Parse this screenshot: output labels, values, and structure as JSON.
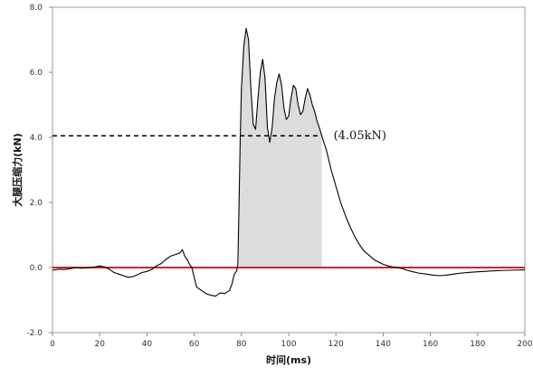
{
  "chart_data": {
    "type": "line",
    "title": "",
    "xlabel": "时间(ms)",
    "ylabel": "大腿压缩力(kN)",
    "xlim": [
      0,
      200
    ],
    "ylim": [
      -2.0,
      8.0
    ],
    "x_ticks": [
      0,
      20,
      40,
      60,
      80,
      100,
      120,
      140,
      160,
      180,
      200
    ],
    "y_ticks": [
      "-2.0",
      "0.0",
      "2.0",
      "4.0",
      "6.0",
      "8.0"
    ],
    "grid": false,
    "legend": "none",
    "series": [
      {
        "color": "#000000",
        "points": [
          [
            0,
            -0.08
          ],
          [
            3,
            -0.05
          ],
          [
            5,
            -0.06
          ],
          [
            8,
            -0.03
          ],
          [
            10,
            0.0
          ],
          [
            12,
            -0.02
          ],
          [
            15,
            -0.01
          ],
          [
            18,
            0.02
          ],
          [
            20,
            0.05
          ],
          [
            22,
            0.02
          ],
          [
            24,
            -0.05
          ],
          [
            26,
            -0.15
          ],
          [
            28,
            -0.2
          ],
          [
            30,
            -0.25
          ],
          [
            32,
            -0.3
          ],
          [
            34,
            -0.28
          ],
          [
            36,
            -0.22
          ],
          [
            38,
            -0.15
          ],
          [
            40,
            -0.12
          ],
          [
            42,
            -0.06
          ],
          [
            44,
            0.05
          ],
          [
            46,
            0.12
          ],
          [
            48,
            0.25
          ],
          [
            50,
            0.35
          ],
          [
            52,
            0.4
          ],
          [
            54,
            0.45
          ],
          [
            55,
            0.55
          ],
          [
            56,
            0.35
          ],
          [
            57,
            0.25
          ],
          [
            58,
            0.1
          ],
          [
            59,
            0.0
          ],
          [
            60,
            -0.3
          ],
          [
            61,
            -0.6
          ],
          [
            63,
            -0.7
          ],
          [
            65,
            -0.8
          ],
          [
            67,
            -0.85
          ],
          [
            69,
            -0.88
          ],
          [
            71,
            -0.78
          ],
          [
            73,
            -0.8
          ],
          [
            75,
            -0.7
          ],
          [
            76,
            -0.5
          ],
          [
            77,
            -0.2
          ],
          [
            78,
            -0.1
          ],
          [
            78.5,
            0.1
          ],
          [
            79,
            2.0
          ],
          [
            79.5,
            4.0
          ],
          [
            80,
            5.5
          ],
          [
            81,
            6.8
          ],
          [
            82,
            7.35
          ],
          [
            83,
            7.0
          ],
          [
            84,
            5.5
          ],
          [
            85,
            4.4
          ],
          [
            86,
            4.25
          ],
          [
            87,
            5.2
          ],
          [
            88,
            6.0
          ],
          [
            89,
            6.4
          ],
          [
            90,
            5.8
          ],
          [
            91,
            4.3
          ],
          [
            92,
            3.85
          ],
          [
            93,
            4.3
          ],
          [
            94,
            5.2
          ],
          [
            95,
            5.7
          ],
          [
            96,
            5.95
          ],
          [
            97,
            5.6
          ],
          [
            98,
            4.9
          ],
          [
            99,
            4.55
          ],
          [
            100,
            4.65
          ],
          [
            101,
            5.2
          ],
          [
            102,
            5.6
          ],
          [
            103,
            5.5
          ],
          [
            104,
            5.0
          ],
          [
            105,
            4.7
          ],
          [
            106,
            4.8
          ],
          [
            107,
            5.2
          ],
          [
            108,
            5.5
          ],
          [
            109,
            5.3
          ],
          [
            110,
            5.0
          ],
          [
            111,
            4.8
          ],
          [
            112,
            4.5
          ],
          [
            113,
            4.3
          ],
          [
            114,
            4.05
          ],
          [
            116,
            3.6
          ],
          [
            118,
            3.0
          ],
          [
            120,
            2.5
          ],
          [
            122,
            2.0
          ],
          [
            124,
            1.6
          ],
          [
            126,
            1.25
          ],
          [
            128,
            0.95
          ],
          [
            130,
            0.7
          ],
          [
            132,
            0.5
          ],
          [
            134,
            0.38
          ],
          [
            136,
            0.25
          ],
          [
            138,
            0.17
          ],
          [
            140,
            0.1
          ],
          [
            142,
            0.05
          ],
          [
            144,
            0.02
          ],
          [
            146,
            0.0
          ],
          [
            148,
            -0.03
          ],
          [
            150,
            -0.08
          ],
          [
            152,
            -0.12
          ],
          [
            155,
            -0.17
          ],
          [
            158,
            -0.2
          ],
          [
            161,
            -0.23
          ],
          [
            164,
            -0.25
          ],
          [
            167,
            -0.23
          ],
          [
            170,
            -0.2
          ],
          [
            173,
            -0.17
          ],
          [
            176,
            -0.15
          ],
          [
            180,
            -0.13
          ],
          [
            185,
            -0.11
          ],
          [
            190,
            -0.09
          ],
          [
            195,
            -0.08
          ],
          [
            200,
            -0.07
          ]
        ]
      }
    ],
    "reference_line": {
      "y": 0.0,
      "color": "#e31a1c"
    },
    "threshold_line": {
      "y": 4.05,
      "x_start": 0,
      "x_end": 114,
      "style": "dashed",
      "color": "#000000"
    },
    "shaded_region": {
      "x_start": 79,
      "x_end": 114,
      "color": "#dcdcdc"
    },
    "annotation": {
      "text": "(4.05kN)",
      "x": 119,
      "y": 4.05
    }
  }
}
